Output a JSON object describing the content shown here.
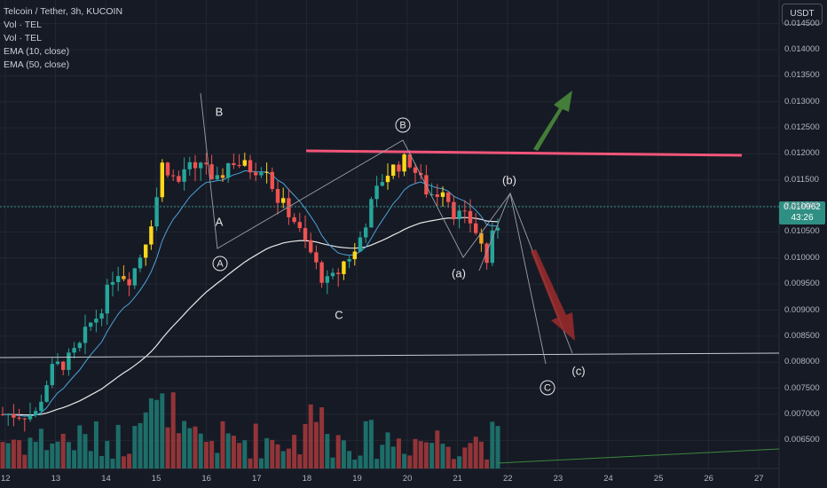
{
  "legend": {
    "symbol": "Telcoin / Tether, 3h, KUCOIN",
    "vol1": "Vol · TEL",
    "vol2": "Vol · TEL",
    "ema10": "EMA (10, close)",
    "ema50": "EMA (50, close)"
  },
  "currency_button": "USDT",
  "last_price": {
    "value": "0.010962",
    "countdown": "43:26"
  },
  "price_axis": [
    "0.014500",
    "0.014000",
    "0.013500",
    "0.013000",
    "0.012500",
    "0.012000",
    "0.011500",
    "0.011000",
    "0.010500",
    "0.010000",
    "0.009500",
    "0.009000",
    "0.008500",
    "0.008000",
    "0.007500",
    "0.007000",
    "0.006500"
  ],
  "time_axis": [
    "12",
    "13",
    "14",
    "15",
    "16",
    "17",
    "18",
    "19",
    "20",
    "21",
    "22",
    "23",
    "24",
    "25",
    "26",
    "27"
  ],
  "wave_labels": {
    "B": "B",
    "A": "A",
    "C": "C",
    "circle_A": "A",
    "circle_B": "B",
    "circle_C": "C",
    "b_paren": "(b)",
    "a_paren": "(a)",
    "c_paren": "(c)"
  },
  "colors": {
    "up": "#26a69a",
    "down": "#ef5350",
    "highlight_up": "#ffd81a",
    "highlight_down": "#f5a623",
    "resistance": "#f2557a",
    "support": "#c8cad0",
    "ema10": "#4aa3d8",
    "ema50": "#e9e9e9",
    "arrow_up": "#4c8f3c",
    "arrow_down": "#9c2b2b",
    "wave_line": "#9aa0ab",
    "grid": "#232733"
  }
}
